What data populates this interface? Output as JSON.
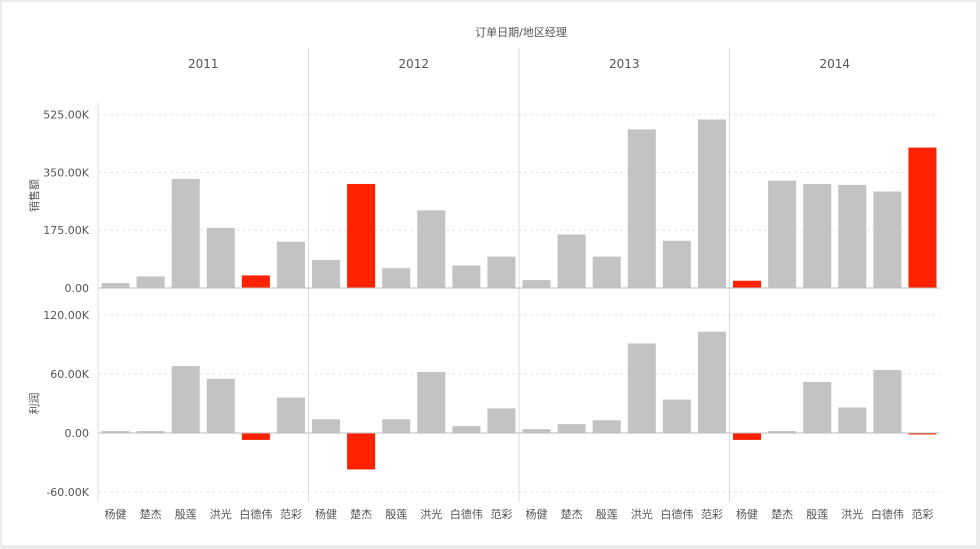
{
  "chart_data": {
    "type": "bar",
    "title": "订单日期/地区经理",
    "years": [
      "2011",
      "2012",
      "2013",
      "2014"
    ],
    "categories": [
      "杨健",
      "楚杰",
      "殷莲",
      "洪光",
      "白德伟",
      "范彩"
    ],
    "highlight_color": "#ff2200",
    "base_color": "#c3c3c3",
    "panels": [
      {
        "ylabel": "销售额",
        "ylim": [
          0,
          560000
        ],
        "ticks": [
          0,
          175000,
          350000,
          525000
        ],
        "tick_labels": [
          "0.00",
          "175.00K",
          "350.00K",
          "525.00K"
        ],
        "values": {
          "2011": [
            15000,
            35000,
            330000,
            182000,
            38000,
            140000
          ],
          "2012": [
            85000,
            315000,
            60000,
            235000,
            68000,
            95000
          ],
          "2013": [
            24000,
            162000,
            95000,
            480000,
            143000,
            510000
          ],
          "2014": [
            22000,
            325000,
            315000,
            312000,
            292000,
            425000
          ]
        },
        "highlight": {
          "2011": [
            false,
            false,
            false,
            false,
            true,
            false
          ],
          "2012": [
            false,
            true,
            false,
            false,
            false,
            false
          ],
          "2013": [
            false,
            false,
            false,
            false,
            false,
            false
          ],
          "2014": [
            true,
            false,
            false,
            false,
            false,
            true
          ]
        }
      },
      {
        "ylabel": "利润",
        "ylim": [
          -65000,
          125000
        ],
        "ticks": [
          -60000,
          0,
          60000,
          120000
        ],
        "tick_labels": [
          "-60.00K",
          "0.00",
          "60.00K",
          "120.00K"
        ],
        "values": {
          "2011": [
            2000,
            2000,
            68000,
            55000,
            -7000,
            36000
          ],
          "2012": [
            14000,
            -37000,
            14000,
            62000,
            7000,
            25000
          ],
          "2013": [
            4000,
            9000,
            13000,
            91000,
            34000,
            103000
          ],
          "2014": [
            -7000,
            2000,
            52000,
            26000,
            64000,
            -1500
          ]
        },
        "highlight": {
          "2011": [
            false,
            false,
            false,
            false,
            true,
            false
          ],
          "2012": [
            false,
            true,
            false,
            false,
            false,
            false
          ],
          "2013": [
            false,
            false,
            false,
            false,
            false,
            false
          ],
          "2014": [
            true,
            false,
            false,
            false,
            false,
            true
          ]
        }
      }
    ]
  }
}
